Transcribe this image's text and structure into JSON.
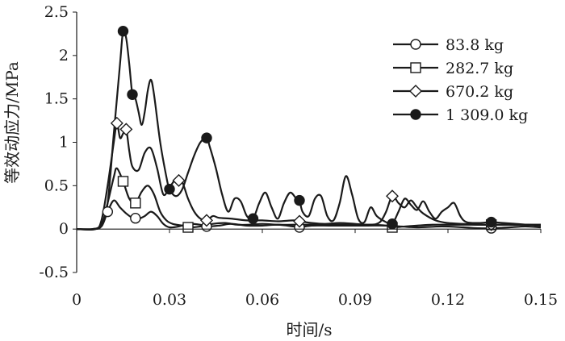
{
  "chart_data": {
    "type": "line",
    "title": "",
    "xlabel": "时间/s",
    "ylabel": "等效动应力/MPa",
    "xlim": [
      0,
      0.15
    ],
    "ylim": [
      -0.5,
      2.5
    ],
    "x_ticks": [
      "0",
      "0.03",
      "0.06",
      "0.09",
      "0.12",
      "0.15"
    ],
    "y_ticks": [
      "-0.5",
      "0",
      "0.5",
      "1",
      "1.5",
      "2",
      "2.5"
    ],
    "grid": false,
    "legend_position": "top-right",
    "series": [
      {
        "name": "83.8 kg",
        "marker": "circle-open",
        "points": [
          [
            0,
            0
          ],
          [
            0.005,
            0
          ],
          [
            0.008,
            0.03
          ],
          [
            0.01,
            0.2
          ],
          [
            0.012,
            0.33
          ],
          [
            0.014,
            0.25
          ],
          [
            0.016,
            0.18
          ],
          [
            0.018,
            0.13
          ],
          [
            0.02,
            0.12
          ],
          [
            0.022,
            0.15
          ],
          [
            0.024,
            0.2
          ],
          [
            0.026,
            0.15
          ],
          [
            0.028,
            0.06
          ],
          [
            0.03,
            0.02
          ],
          [
            0.033,
            0.03
          ],
          [
            0.036,
            0.06
          ],
          [
            0.04,
            0.05
          ],
          [
            0.042,
            0.03
          ],
          [
            0.046,
            0.04
          ],
          [
            0.05,
            0.06
          ],
          [
            0.055,
            0.04
          ],
          [
            0.06,
            0.04
          ],
          [
            0.065,
            0.05
          ],
          [
            0.07,
            0.03
          ],
          [
            0.072,
            0.02
          ],
          [
            0.076,
            0.04
          ],
          [
            0.082,
            0.04
          ],
          [
            0.088,
            0.04
          ],
          [
            0.094,
            0.04
          ],
          [
            0.1,
            0.04
          ],
          [
            0.105,
            0.03
          ],
          [
            0.11,
            0.02
          ],
          [
            0.118,
            0.03
          ],
          [
            0.125,
            0.02
          ],
          [
            0.13,
            0.01
          ],
          [
            0.134,
            0.01
          ],
          [
            0.14,
            0.02
          ],
          [
            0.145,
            0.03
          ],
          [
            0.15,
            0.02
          ]
        ],
        "markers_x": [
          0.01,
          0.019,
          0.042,
          0.072,
          0.134
        ]
      },
      {
        "name": "282.7 kg",
        "marker": "square-open",
        "points": [
          [
            0,
            0
          ],
          [
            0.005,
            0
          ],
          [
            0.008,
            0.05
          ],
          [
            0.01,
            0.3
          ],
          [
            0.012,
            0.6
          ],
          [
            0.013,
            0.7
          ],
          [
            0.015,
            0.55
          ],
          [
            0.017,
            0.35
          ],
          [
            0.019,
            0.3
          ],
          [
            0.021,
            0.43
          ],
          [
            0.023,
            0.5
          ],
          [
            0.025,
            0.4
          ],
          [
            0.027,
            0.2
          ],
          [
            0.029,
            0.1
          ],
          [
            0.031,
            0.06
          ],
          [
            0.034,
            0.04
          ],
          [
            0.036,
            0.02
          ],
          [
            0.04,
            0.03
          ],
          [
            0.044,
            0.06
          ],
          [
            0.048,
            0.07
          ],
          [
            0.052,
            0.05
          ],
          [
            0.056,
            0.05
          ],
          [
            0.06,
            0.06
          ],
          [
            0.065,
            0.05
          ],
          [
            0.07,
            0.05
          ],
          [
            0.075,
            0.05
          ],
          [
            0.08,
            0.05
          ],
          [
            0.085,
            0.05
          ],
          [
            0.09,
            0.05
          ],
          [
            0.095,
            0.05
          ],
          [
            0.1,
            0.04
          ],
          [
            0.102,
            0.02
          ],
          [
            0.106,
            0.03
          ],
          [
            0.11,
            0.04
          ],
          [
            0.115,
            0.05
          ],
          [
            0.12,
            0.05
          ],
          [
            0.125,
            0.05
          ],
          [
            0.13,
            0.05
          ],
          [
            0.134,
            0.05
          ],
          [
            0.14,
            0.05
          ],
          [
            0.145,
            0.05
          ],
          [
            0.15,
            0.04
          ]
        ],
        "markers_x": [
          0.015,
          0.019,
          0.036,
          0.102,
          0.134
        ]
      },
      {
        "name": "670.2 kg",
        "marker": "diamond-open",
        "points": [
          [
            0,
            0
          ],
          [
            0.006,
            0
          ],
          [
            0.008,
            0.1
          ],
          [
            0.01,
            0.5
          ],
          [
            0.012,
            1.0
          ],
          [
            0.013,
            1.22
          ],
          [
            0.014,
            1.05
          ],
          [
            0.015,
            1.1
          ],
          [
            0.016,
            1.15
          ],
          [
            0.017,
            0.9
          ],
          [
            0.018,
            0.72
          ],
          [
            0.02,
            0.68
          ],
          [
            0.022,
            0.88
          ],
          [
            0.024,
            0.93
          ],
          [
            0.026,
            0.7
          ],
          [
            0.028,
            0.4
          ],
          [
            0.03,
            0.48
          ],
          [
            0.032,
            0.57
          ],
          [
            0.034,
            0.55
          ],
          [
            0.036,
            0.35
          ],
          [
            0.038,
            0.2
          ],
          [
            0.04,
            0.12
          ],
          [
            0.042,
            0.1
          ],
          [
            0.044,
            0.15
          ],
          [
            0.046,
            0.13
          ],
          [
            0.05,
            0.12
          ],
          [
            0.055,
            0.1
          ],
          [
            0.06,
            0.1
          ],
          [
            0.065,
            0.09
          ],
          [
            0.07,
            0.1
          ],
          [
            0.072,
            0.09
          ],
          [
            0.076,
            0.07
          ],
          [
            0.08,
            0.06
          ],
          [
            0.085,
            0.07
          ],
          [
            0.09,
            0.06
          ],
          [
            0.095,
            0.05
          ],
          [
            0.098,
            0.08
          ],
          [
            0.1,
            0.2
          ],
          [
            0.102,
            0.38
          ],
          [
            0.104,
            0.3
          ],
          [
            0.106,
            0.25
          ],
          [
            0.108,
            0.33
          ],
          [
            0.11,
            0.25
          ],
          [
            0.112,
            0.18
          ],
          [
            0.116,
            0.1
          ],
          [
            0.12,
            0.07
          ],
          [
            0.125,
            0.06
          ],
          [
            0.13,
            0.05
          ],
          [
            0.134,
            0.05
          ],
          [
            0.14,
            0.05
          ],
          [
            0.145,
            0.05
          ],
          [
            0.15,
            0.05
          ]
        ],
        "markers_x": [
          0.013,
          0.016,
          0.033,
          0.042,
          0.072,
          0.102,
          0.134
        ]
      },
      {
        "name": "1 309.0 kg",
        "marker": "circle-filled",
        "points": [
          [
            0,
            0
          ],
          [
            0.006,
            0
          ],
          [
            0.008,
            0.05
          ],
          [
            0.01,
            0.3
          ],
          [
            0.012,
            1.1
          ],
          [
            0.014,
            1.9
          ],
          [
            0.015,
            2.28
          ],
          [
            0.016,
            2.2
          ],
          [
            0.017,
            1.9
          ],
          [
            0.018,
            1.55
          ],
          [
            0.019,
            1.5
          ],
          [
            0.02,
            1.35
          ],
          [
            0.021,
            1.2
          ],
          [
            0.022,
            1.35
          ],
          [
            0.023,
            1.6
          ],
          [
            0.024,
            1.72
          ],
          [
            0.025,
            1.55
          ],
          [
            0.027,
            1.0
          ],
          [
            0.029,
            0.6
          ],
          [
            0.03,
            0.46
          ],
          [
            0.032,
            0.38
          ],
          [
            0.034,
            0.45
          ],
          [
            0.036,
            0.65
          ],
          [
            0.038,
            0.85
          ],
          [
            0.04,
            1.0
          ],
          [
            0.042,
            1.05
          ],
          [
            0.043,
            0.95
          ],
          [
            0.045,
            0.7
          ],
          [
            0.047,
            0.4
          ],
          [
            0.049,
            0.2
          ],
          [
            0.051,
            0.35
          ],
          [
            0.053,
            0.32
          ],
          [
            0.055,
            0.15
          ],
          [
            0.057,
            0.12
          ],
          [
            0.059,
            0.3
          ],
          [
            0.061,
            0.42
          ],
          [
            0.063,
            0.25
          ],
          [
            0.065,
            0.12
          ],
          [
            0.067,
            0.3
          ],
          [
            0.069,
            0.42
          ],
          [
            0.071,
            0.35
          ],
          [
            0.072,
            0.33
          ],
          [
            0.073,
            0.2
          ],
          [
            0.075,
            0.15
          ],
          [
            0.077,
            0.35
          ],
          [
            0.079,
            0.38
          ],
          [
            0.081,
            0.15
          ],
          [
            0.083,
            0.1
          ],
          [
            0.085,
            0.3
          ],
          [
            0.087,
            0.61
          ],
          [
            0.089,
            0.4
          ],
          [
            0.091,
            0.12
          ],
          [
            0.093,
            0.08
          ],
          [
            0.095,
            0.25
          ],
          [
            0.097,
            0.15
          ],
          [
            0.1,
            0.08
          ],
          [
            0.102,
            0.06
          ],
          [
            0.104,
            0.2
          ],
          [
            0.106,
            0.35
          ],
          [
            0.108,
            0.28
          ],
          [
            0.11,
            0.22
          ],
          [
            0.112,
            0.32
          ],
          [
            0.114,
            0.2
          ],
          [
            0.116,
            0.12
          ],
          [
            0.118,
            0.2
          ],
          [
            0.12,
            0.25
          ],
          [
            0.122,
            0.3
          ],
          [
            0.124,
            0.15
          ],
          [
            0.126,
            0.08
          ],
          [
            0.13,
            0.07
          ],
          [
            0.134,
            0.08
          ],
          [
            0.138,
            0.07
          ],
          [
            0.142,
            0.06
          ],
          [
            0.146,
            0.05
          ],
          [
            0.15,
            0.05
          ]
        ],
        "markers_x": [
          0.015,
          0.018,
          0.03,
          0.042,
          0.057,
          0.072,
          0.102,
          0.134
        ]
      }
    ]
  }
}
